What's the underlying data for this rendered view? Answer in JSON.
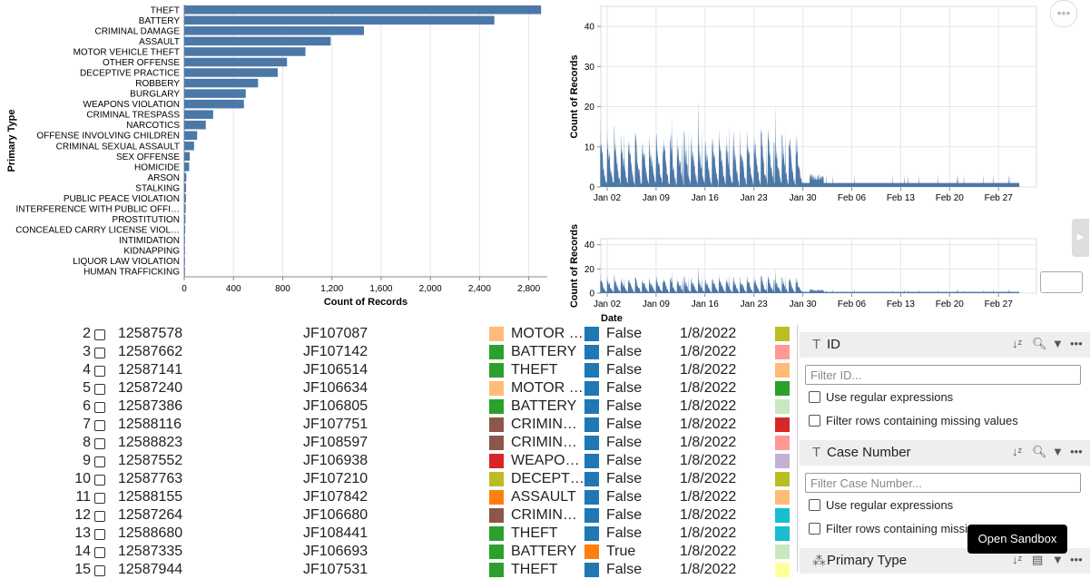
{
  "bar_chart": {
    "chart_data": {
      "type": "bar",
      "orientation": "horizontal",
      "ylabel": "Primary Type",
      "xlabel": "Count of Records",
      "xlim": [
        0,
        2950
      ],
      "xticks": [
        "0",
        "400",
        "800",
        "1,200",
        "1,600",
        "2,000",
        "2,400",
        "2,800"
      ],
      "xtick_values": [
        0,
        400,
        800,
        1200,
        1600,
        2000,
        2400,
        2800
      ],
      "color": "#4c78a8",
      "categories": [
        "THEFT",
        "BATTERY",
        "CRIMINAL DAMAGE",
        "ASSAULT",
        "MOTOR VEHICLE THEFT",
        "OTHER OFFENSE",
        "DECEPTIVE PRACTICE",
        "ROBBERY",
        "BURGLARY",
        "WEAPONS VIOLATION",
        "CRIMINAL TRESPASS",
        "NARCOTICS",
        "OFFENSE INVOLVING CHILDREN",
        "CRIMINAL SEXUAL ASSAULT",
        "SEX OFFENSE",
        "HOMICIDE",
        "ARSON",
        "STALKING",
        "PUBLIC PEACE VIOLATION",
        "INTERFERENCE WITH PUBLIC OFFI…",
        "PROSTITUTION",
        "CONCEALED CARRY LICENSE VIOL…",
        "INTIMIDATION",
        "KIDNAPPING",
        "LIQUOR LAW VIOLATION",
        "HUMAN TRAFFICKING"
      ],
      "values": [
        2900,
        2520,
        1460,
        1190,
        985,
        835,
        760,
        600,
        500,
        485,
        235,
        175,
        105,
        80,
        45,
        40,
        17,
        15,
        14,
        12,
        10,
        8,
        6,
        5,
        3,
        2
      ]
    }
  },
  "timeline_main": {
    "chart_data": {
      "type": "area",
      "ylabel": "Count of Records",
      "ylim": [
        0,
        45
      ],
      "yticks": [
        "0",
        "10",
        "20",
        "30",
        "40"
      ],
      "xticks": [
        "Jan 02",
        "Jan 09",
        "Jan 16",
        "Jan 23",
        "Jan 30",
        "Feb 06",
        "Feb 13",
        "Feb 20",
        "Feb 27"
      ],
      "color": "#4c78a8"
    }
  },
  "timeline_mini": {
    "chart_data": {
      "type": "area",
      "ylabel": "Count of Records",
      "xlabel": "Date",
      "ylim": [
        0,
        45
      ],
      "yticks": [
        "0",
        "20",
        "40"
      ],
      "xticks": [
        "Jan 02",
        "Jan 09",
        "Jan 16",
        "Jan 23",
        "Jan 30",
        "Feb 06",
        "Feb 13",
        "Feb 20",
        "Feb 27"
      ],
      "color": "#4c78a8"
    }
  },
  "table": {
    "rows": [
      {
        "idx": "2",
        "id": "12587578",
        "case": "JF107087",
        "type": "MOTOR …",
        "type_color": "#ffbb78",
        "arrest": "False",
        "arrest_color": "#1f77b4",
        "date": "1/8/2022",
        "tail_color": "#bcbd22"
      },
      {
        "idx": "3",
        "id": "12587662",
        "case": "JF107142",
        "type": "BATTERY",
        "type_color": "#2ca02c",
        "arrest": "False",
        "arrest_color": "#1f77b4",
        "date": "1/8/2022",
        "tail_color": "#ff9896"
      },
      {
        "idx": "4",
        "id": "12587141",
        "case": "JF106514",
        "type": "THEFT",
        "type_color": "#2ca02c",
        "arrest": "False",
        "arrest_color": "#1f77b4",
        "date": "1/8/2022",
        "tail_color": "#ffbb78"
      },
      {
        "idx": "5",
        "id": "12587240",
        "case": "JF106634",
        "type": "MOTOR …",
        "type_color": "#ffbb78",
        "arrest": "False",
        "arrest_color": "#1f77b4",
        "date": "1/8/2022",
        "tail_color": "#2ca02c"
      },
      {
        "idx": "6",
        "id": "12587386",
        "case": "JF106805",
        "type": "BATTERY",
        "type_color": "#2ca02c",
        "arrest": "False",
        "arrest_color": "#1f77b4",
        "date": "1/8/2022",
        "tail_color": "#c7e9c0"
      },
      {
        "idx": "7",
        "id": "12588116",
        "case": "JF107751",
        "type": "CRIMIN…",
        "type_color": "#8c564b",
        "arrest": "False",
        "arrest_color": "#1f77b4",
        "date": "1/8/2022",
        "tail_color": "#d62728"
      },
      {
        "idx": "8",
        "id": "12588823",
        "case": "JF108597",
        "type": "CRIMIN…",
        "type_color": "#8c564b",
        "arrest": "False",
        "arrest_color": "#1f77b4",
        "date": "1/8/2022",
        "tail_color": "#ff9896"
      },
      {
        "idx": "9",
        "id": "12587552",
        "case": "JF106938",
        "type": "WEAPO…",
        "type_color": "#d62728",
        "arrest": "False",
        "arrest_color": "#1f77b4",
        "date": "1/8/2022",
        "tail_color": "#c5b0d5"
      },
      {
        "idx": "10",
        "id": "12587763",
        "case": "JF107210",
        "type": "DECEPT…",
        "type_color": "#bcbd22",
        "arrest": "False",
        "arrest_color": "#1f77b4",
        "date": "1/8/2022",
        "tail_color": "#bcbd22"
      },
      {
        "idx": "11",
        "id": "12588155",
        "case": "JF107842",
        "type": "ASSAULT",
        "type_color": "#ff7f0e",
        "arrest": "False",
        "arrest_color": "#1f77b4",
        "date": "1/8/2022",
        "tail_color": "#ffbb78"
      },
      {
        "idx": "12",
        "id": "12587264",
        "case": "JF106680",
        "type": "CRIMIN…",
        "type_color": "#8c564b",
        "arrest": "False",
        "arrest_color": "#1f77b4",
        "date": "1/8/2022",
        "tail_color": "#17becf"
      },
      {
        "idx": "13",
        "id": "12588680",
        "case": "JF108441",
        "type": "THEFT",
        "type_color": "#2ca02c",
        "arrest": "False",
        "arrest_color": "#1f77b4",
        "date": "1/8/2022",
        "tail_color": "#17becf"
      },
      {
        "idx": "14",
        "id": "12587335",
        "case": "JF106693",
        "type": "BATTERY",
        "type_color": "#2ca02c",
        "arrest": "True",
        "arrest_color": "#ff7f0e",
        "date": "1/8/2022",
        "tail_color": "#c7e9c0"
      },
      {
        "idx": "15",
        "id": "12587944",
        "case": "JF107531",
        "type": "THEFT",
        "type_color": "#2ca02c",
        "arrest": "False",
        "arrest_color": "#1f77b4",
        "date": "1/8/2022",
        "tail_color": "#ffff99"
      }
    ]
  },
  "filters": {
    "id": {
      "name": "ID",
      "placeholder": "Filter ID..."
    },
    "case": {
      "name": "Case Number",
      "placeholder": "Filter Case Number..."
    },
    "ptype": {
      "name": "Primary Type"
    },
    "regex_label": "Use regular expressions",
    "missing_label": "Filter rows containing missing values",
    "missing_label_cut": "Filter rows containing missin"
  },
  "tooltip": "Open Sandbox",
  "icons": {
    "more": "more-horizontal-icon",
    "sort": "sort-az-icon",
    "search": "search-icon",
    "filter": "filter-icon",
    "text_type": "text-type-icon",
    "category": "category-icon",
    "side": "chevron-right-icon"
  }
}
